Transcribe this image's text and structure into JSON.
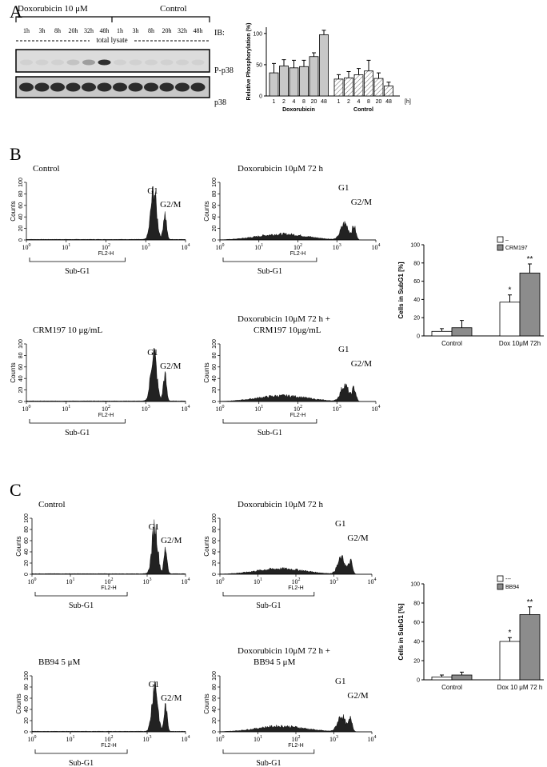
{
  "panel_labels": [
    "A",
    "B",
    "C"
  ],
  "blot": {
    "groups": [
      "Doxorubicin 10 μM",
      "Control"
    ],
    "lanes": [
      "1h",
      "3h",
      "8h",
      "20h",
      "32h",
      "48h",
      "1h",
      "3h",
      "8h",
      "20h",
      "32h",
      "48h"
    ],
    "lysate": "total lysate",
    "ib": "IB:",
    "rows": [
      "P-p38",
      "p38"
    ]
  },
  "flow_panels": [
    {
      "title": [
        "Control"
      ],
      "ylabel": "Counts",
      "ylim": [
        0,
        100
      ],
      "yticks": [
        0,
        20,
        40,
        60,
        80,
        100
      ],
      "xtick_base": "10",
      "xtick_exponents": [
        "0",
        "1",
        "2",
        "3",
        "4"
      ],
      "xlabel": "FL2-H",
      "gate": "Sub-G1",
      "peaks": [
        "G1",
        "G2/M"
      ]
    },
    {
      "title": [
        "Doxorubicin 10μM 72 h"
      ],
      "ylabel": "Counts",
      "ylim": [
        0,
        100
      ],
      "yticks": [
        0,
        20,
        40,
        60,
        80,
        100
      ],
      "xtick_base": "10",
      "xtick_exponents": [
        "0",
        "1",
        "2",
        "3",
        "4"
      ],
      "xlabel": "FL2-H",
      "gate": "Sub-G1",
      "peaks": [
        "G1",
        "G2/M"
      ]
    },
    {
      "title": [
        "CRM197  10 μg/mL"
      ],
      "ylabel": "Counts",
      "ylim": [
        0,
        100
      ],
      "yticks": [
        0,
        20,
        40,
        60,
        80,
        100
      ],
      "xtick_base": "10",
      "xtick_exponents": [
        "0",
        "1",
        "2",
        "3",
        "4"
      ],
      "xlabel": "FL2-H",
      "gate": "Sub-G1",
      "peaks": [
        "G1",
        "G2/M"
      ]
    },
    {
      "title": [
        "Doxorubicin 10μM 72 h +",
        "CRM197 10μg/mL"
      ],
      "ylabel": "Counts",
      "ylim": [
        0,
        100
      ],
      "yticks": [
        0,
        20,
        40,
        60,
        80,
        100
      ],
      "xtick_base": "10",
      "xtick_exponents": [
        "0",
        "1",
        "2",
        "3",
        "4"
      ],
      "xlabel": "FL2-H",
      "gate": "Sub-G1",
      "peaks": [
        "G1",
        "G2/M"
      ]
    },
    {
      "title": [
        "Control"
      ],
      "ylabel": "Counts",
      "ylim": [
        0,
        100
      ],
      "yticks": [
        0,
        20,
        40,
        60,
        80,
        100
      ],
      "xtick_base": "10",
      "xtick_exponents": [
        "0",
        "1",
        "2",
        "3",
        "4"
      ],
      "xlabel": "FL2-H",
      "gate": "Sub-G1",
      "peaks": [
        "G1",
        "G2/M"
      ]
    },
    {
      "title": [
        "Doxorubicin 10μM 72 h"
      ],
      "ylabel": "Counts",
      "ylim": [
        0,
        100
      ],
      "yticks": [
        0,
        20,
        40,
        60,
        80,
        100
      ],
      "xtick_base": "10",
      "xtick_exponents": [
        "0",
        "1",
        "2",
        "3",
        "4"
      ],
      "xlabel": "FL2-H",
      "gate": "Sub-G1",
      "peaks": [
        "G1",
        "G2/M"
      ]
    },
    {
      "title": [
        "BB94 5 μM"
      ],
      "ylabel": "Counts",
      "ylim": [
        0,
        100
      ],
      "yticks": [
        0,
        20,
        40,
        60,
        80,
        100
      ],
      "xtick_base": "10",
      "xtick_exponents": [
        "0",
        "1",
        "2",
        "3",
        "4"
      ],
      "xlabel": "FL2-H",
      "gate": "Sub-G1",
      "peaks": [
        "G1",
        "G2/M"
      ]
    },
    {
      "title": [
        "Doxorubicin 10μM 72 h +",
        "BB94 5 μM"
      ],
      "ylabel": "Counts",
      "ylim": [
        0,
        100
      ],
      "yticks": [
        0,
        20,
        40,
        60,
        80,
        100
      ],
      "xtick_base": "10",
      "xtick_exponents": [
        "0",
        "1",
        "2",
        "3",
        "4"
      ],
      "xlabel": "FL2-H",
      "gate": "Sub-G1",
      "peaks": [
        "G1",
        "G2/M"
      ]
    }
  ],
  "chart_data": [
    {
      "type": "bar",
      "ylabel": "Relative Phosphorylation (%)",
      "categories": [
        "1",
        "2",
        "4",
        "8",
        "20",
        "48"
      ],
      "x_unit": "[h]",
      "ylim": [
        0,
        110
      ],
      "yticks": [
        0,
        50,
        100
      ],
      "series": [
        {
          "name": "Doxorubicin",
          "color": "#c8c8c8",
          "values": [
            37,
            48,
            45,
            47,
            63,
            98
          ],
          "errors": [
            15,
            10,
            12,
            10,
            6,
            7
          ]
        },
        {
          "name": "Control",
          "color": "#ffffff",
          "hatch": true,
          "values": [
            27,
            29,
            34,
            40,
            28,
            16
          ],
          "errors": [
            7,
            10,
            10,
            17,
            9,
            6
          ]
        }
      ]
    },
    {
      "type": "bar",
      "ylabel": "Cells in SubG1 [%]",
      "categories": [
        "Control",
        "Dox 10μM 72h"
      ],
      "ylim": [
        0,
        100
      ],
      "yticks": [
        0,
        20,
        40,
        60,
        80,
        100
      ],
      "legend": "upper right",
      "series": [
        {
          "name": "–",
          "color": "#ffffff",
          "values": [
            5,
            37
          ],
          "errors": [
            3,
            8
          ]
        },
        {
          "name": "CRM197",
          "color": "#8c8c8c",
          "values": [
            9,
            69
          ],
          "errors": [
            8,
            10
          ]
        }
      ],
      "annotations": [
        "*",
        "**"
      ]
    },
    {
      "type": "bar",
      "ylabel": "Cells in SubG1 [%]",
      "categories": [
        "Control",
        "Dox 10 μM  72 h"
      ],
      "ylim": [
        0,
        100
      ],
      "yticks": [
        0,
        20,
        40,
        60,
        80,
        100
      ],
      "legend": "upper right",
      "series": [
        {
          "name": "---",
          "color": "#ffffff",
          "values": [
            3,
            40
          ],
          "errors": [
            2,
            4
          ]
        },
        {
          "name": "BB94",
          "color": "#8c8c8c",
          "values": [
            5,
            68
          ],
          "errors": [
            3,
            8
          ]
        }
      ],
      "annotations": [
        "*",
        "**"
      ]
    }
  ]
}
